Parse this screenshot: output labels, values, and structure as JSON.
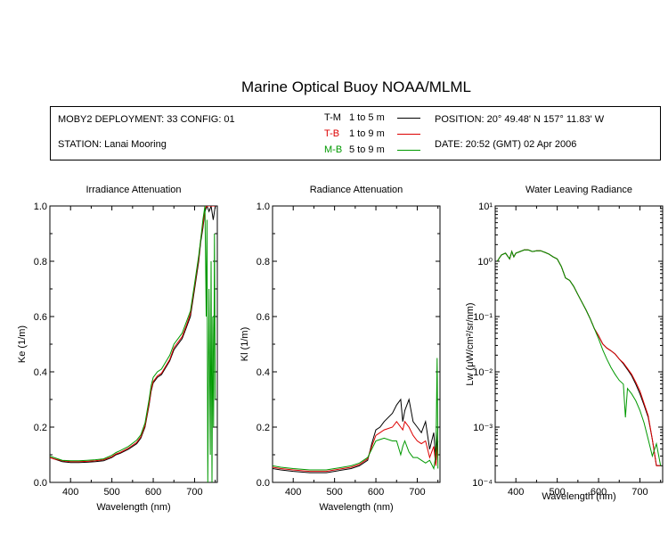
{
  "title": "Marine Optical Buoy NOAA/MLML",
  "info": {
    "deployment": "MOBY2 DEPLOYMENT: 33 CONFIG: 01",
    "station": "STATION: Lanai Mooring",
    "position": "POSITION: 20° 49.48' N   157° 11.83' W",
    "date": "DATE: 20:52 (GMT) 02 Apr 2006"
  },
  "legend": [
    {
      "code": "T-M",
      "range": "1 to 5  m",
      "color": "#000000"
    },
    {
      "code": "T-B",
      "range": "1 to 9  m",
      "color": "#dd0000"
    },
    {
      "code": "M-B",
      "range": "5 to 9  m",
      "color": "#009900"
    }
  ],
  "chart_data": [
    {
      "type": "line",
      "title": "Irradiance Attenuation",
      "xlabel": "Wavelength (nm)",
      "ylabel": "Ke  (1/m)",
      "xlim": [
        350,
        755
      ],
      "ylim": [
        0,
        1.0
      ],
      "xticks": [
        "400",
        "500",
        "600",
        "700"
      ],
      "yticks": [
        "0.0",
        "0.2",
        "0.4",
        "0.6",
        "0.8",
        "1.0"
      ],
      "series": [
        {
          "name": "T-M",
          "color": "#000000",
          "x": [
            350,
            360,
            380,
            400,
            420,
            440,
            460,
            480,
            500,
            510,
            520,
            540,
            560,
            570,
            580,
            590,
            595,
            600,
            605,
            610,
            620,
            640,
            650,
            660,
            670,
            680,
            690,
            700,
            710,
            715,
            720,
            725,
            730,
            735,
            740,
            745,
            750
          ],
          "y": [
            0.09,
            0.085,
            0.075,
            0.072,
            0.072,
            0.073,
            0.075,
            0.078,
            0.09,
            0.1,
            0.105,
            0.12,
            0.14,
            0.16,
            0.2,
            0.28,
            0.33,
            0.36,
            0.37,
            0.38,
            0.39,
            0.44,
            0.48,
            0.5,
            0.52,
            0.56,
            0.6,
            0.7,
            0.8,
            0.87,
            0.92,
            0.98,
            1.0,
            0.98,
            1.0,
            0.95,
            1.0
          ]
        },
        {
          "name": "T-B",
          "color": "#dd0000",
          "x": [
            350,
            360,
            380,
            400,
            420,
            440,
            460,
            480,
            500,
            510,
            520,
            540,
            560,
            570,
            580,
            590,
            595,
            600,
            605,
            610,
            620,
            640,
            650,
            660,
            670,
            680,
            690,
            700,
            710,
            715,
            720,
            725,
            730,
            735,
            740,
            745,
            750
          ],
          "y": [
            0.09,
            0.085,
            0.078,
            0.075,
            0.075,
            0.076,
            0.078,
            0.082,
            0.093,
            0.103,
            0.108,
            0.124,
            0.145,
            0.165,
            0.205,
            0.285,
            0.335,
            0.365,
            0.375,
            0.385,
            0.395,
            0.445,
            0.487,
            0.507,
            0.527,
            0.567,
            0.61,
            0.71,
            0.81,
            0.88,
            0.93,
            0.99,
            1.0,
            1.0,
            1.0,
            1.0,
            1.0
          ]
        },
        {
          "name": "M-B",
          "color": "#009900",
          "x": [
            350,
            360,
            380,
            400,
            420,
            440,
            460,
            480,
            500,
            510,
            520,
            540,
            560,
            570,
            580,
            590,
            595,
            600,
            605,
            610,
            620,
            640,
            650,
            660,
            670,
            680,
            690,
            700,
            710,
            715,
            720,
            725,
            728,
            730,
            732,
            735,
            738,
            740,
            742,
            744,
            746,
            748,
            750
          ],
          "y": [
            0.095,
            0.09,
            0.08,
            0.078,
            0.078,
            0.08,
            0.082,
            0.085,
            0.098,
            0.108,
            0.115,
            0.13,
            0.153,
            0.172,
            0.215,
            0.3,
            0.35,
            0.38,
            0.39,
            0.4,
            0.41,
            0.46,
            0.5,
            0.52,
            0.54,
            0.58,
            0.62,
            0.72,
            0.82,
            0.88,
            0.95,
            1.0,
            0.6,
            0.95,
            0.0,
            0.7,
            0.1,
            0.8,
            0.0,
            0.6,
            0.2,
            0.9,
            0.3
          ]
        }
      ]
    },
    {
      "type": "line",
      "title": "Radiance Attenuation",
      "xlabel": "Wavelength (nm)",
      "ylabel": "Kl  (1/m)",
      "xlim": [
        350,
        755
      ],
      "ylim": [
        0,
        1.0
      ],
      "xticks": [
        "400",
        "500",
        "600",
        "700"
      ],
      "yticks": [
        "0.0",
        "0.2",
        "0.4",
        "0.6",
        "0.8",
        "1.0"
      ],
      "series": [
        {
          "name": "T-M",
          "color": "#000000",
          "x": [
            350,
            370,
            400,
            440,
            480,
            500,
            520,
            540,
            560,
            580,
            590,
            600,
            610,
            620,
            640,
            650,
            660,
            665,
            670,
            680,
            690,
            700,
            710,
            720,
            730,
            740,
            745,
            750
          ],
          "y": [
            0.05,
            0.045,
            0.04,
            0.035,
            0.035,
            0.04,
            0.045,
            0.05,
            0.06,
            0.08,
            0.14,
            0.19,
            0.2,
            0.22,
            0.25,
            0.28,
            0.3,
            0.22,
            0.26,
            0.3,
            0.22,
            0.2,
            0.18,
            0.22,
            0.12,
            0.18,
            0.08,
            0.2
          ]
        },
        {
          "name": "T-B",
          "color": "#dd0000",
          "x": [
            350,
            370,
            400,
            440,
            480,
            500,
            520,
            540,
            560,
            580,
            590,
            600,
            610,
            620,
            640,
            650,
            660,
            665,
            670,
            680,
            690,
            700,
            710,
            720,
            730,
            740,
            745,
            750
          ],
          "y": [
            0.055,
            0.05,
            0.045,
            0.04,
            0.04,
            0.045,
            0.05,
            0.055,
            0.065,
            0.085,
            0.13,
            0.17,
            0.18,
            0.19,
            0.2,
            0.22,
            0.2,
            0.19,
            0.22,
            0.2,
            0.17,
            0.15,
            0.14,
            0.15,
            0.09,
            0.13,
            0.06,
            0.15
          ]
        },
        {
          "name": "M-B",
          "color": "#009900",
          "x": [
            350,
            370,
            400,
            440,
            480,
            500,
            520,
            540,
            560,
            580,
            590,
            600,
            610,
            620,
            640,
            650,
            660,
            665,
            670,
            680,
            690,
            700,
            710,
            720,
            730,
            740,
            745,
            748,
            750
          ],
          "y": [
            0.06,
            0.055,
            0.05,
            0.045,
            0.045,
            0.05,
            0.055,
            0.06,
            0.07,
            0.09,
            0.12,
            0.15,
            0.155,
            0.16,
            0.15,
            0.15,
            0.1,
            0.13,
            0.15,
            0.11,
            0.09,
            0.09,
            0.08,
            0.07,
            0.08,
            0.05,
            0.1,
            0.45,
            0.05
          ]
        }
      ]
    },
    {
      "type": "line",
      "title": "Water Leaving Radiance",
      "xlabel": "Wavelength (nm)",
      "ylabel": "Lw  (μW/cm²/sr/nm)",
      "yscale": "log",
      "xlim": [
        350,
        755
      ],
      "ylim": [
        0.0001,
        10
      ],
      "xticks": [
        "400",
        "500",
        "600",
        "700"
      ],
      "yticks": [
        "10⁻⁴",
        "10⁻³",
        "10⁻²",
        "10⁻¹",
        "10⁰",
        "10¹"
      ],
      "series": [
        {
          "name": "T-M",
          "color": "#000000",
          "x": [
            355,
            365,
            375,
            385,
            390,
            395,
            400,
            410,
            420,
            430,
            440,
            450,
            460,
            470,
            480,
            490,
            500,
            510,
            520,
            530,
            540,
            550,
            560,
            570,
            580,
            590,
            600,
            610,
            620,
            630,
            640,
            650,
            660,
            670,
            680,
            690,
            700,
            710,
            720,
            730,
            740,
            750
          ],
          "y": [
            1.0,
            1.3,
            1.4,
            1.1,
            1.5,
            1.2,
            1.4,
            1.5,
            1.6,
            1.6,
            1.5,
            1.55,
            1.55,
            1.45,
            1.35,
            1.2,
            1.1,
            0.8,
            0.5,
            0.45,
            0.35,
            0.25,
            0.18,
            0.13,
            0.09,
            0.06,
            0.045,
            0.032,
            0.027,
            0.024,
            0.021,
            0.017,
            0.014,
            0.011,
            0.0085,
            0.006,
            0.004,
            0.0025,
            0.0015,
            0.0006,
            0.0002,
            0.0002
          ]
        },
        {
          "name": "T-B",
          "color": "#dd0000",
          "x": [
            355,
            365,
            375,
            385,
            390,
            395,
            400,
            410,
            420,
            430,
            440,
            450,
            460,
            470,
            480,
            490,
            500,
            510,
            520,
            530,
            540,
            550,
            560,
            570,
            580,
            590,
            600,
            610,
            620,
            630,
            640,
            650,
            660,
            670,
            680,
            690,
            700,
            710,
            720,
            730,
            740,
            750
          ],
          "y": [
            1.0,
            1.3,
            1.4,
            1.1,
            1.5,
            1.2,
            1.4,
            1.5,
            1.6,
            1.6,
            1.5,
            1.55,
            1.55,
            1.45,
            1.35,
            1.2,
            1.1,
            0.8,
            0.5,
            0.45,
            0.35,
            0.25,
            0.18,
            0.13,
            0.09,
            0.06,
            0.045,
            0.032,
            0.027,
            0.024,
            0.021,
            0.017,
            0.0145,
            0.0115,
            0.009,
            0.0065,
            0.0045,
            0.0027,
            0.0016,
            0.0006,
            0.0002,
            0.0002
          ]
        },
        {
          "name": "M-B",
          "color": "#009900",
          "x": [
            355,
            365,
            375,
            385,
            390,
            395,
            400,
            410,
            420,
            430,
            440,
            450,
            460,
            470,
            480,
            490,
            500,
            510,
            520,
            530,
            540,
            550,
            560,
            570,
            580,
            590,
            600,
            610,
            620,
            630,
            640,
            650,
            660,
            665,
            670,
            680,
            690,
            700,
            710,
            720,
            730,
            740,
            750
          ],
          "y": [
            1.0,
            1.3,
            1.4,
            1.1,
            1.5,
            1.2,
            1.4,
            1.5,
            1.6,
            1.6,
            1.5,
            1.55,
            1.55,
            1.45,
            1.35,
            1.2,
            1.1,
            0.8,
            0.5,
            0.45,
            0.35,
            0.25,
            0.18,
            0.13,
            0.09,
            0.06,
            0.04,
            0.025,
            0.017,
            0.012,
            0.009,
            0.007,
            0.006,
            0.0015,
            0.005,
            0.004,
            0.003,
            0.002,
            0.0012,
            0.0006,
            0.0003,
            0.0005,
            0.0002
          ]
        }
      ]
    }
  ]
}
